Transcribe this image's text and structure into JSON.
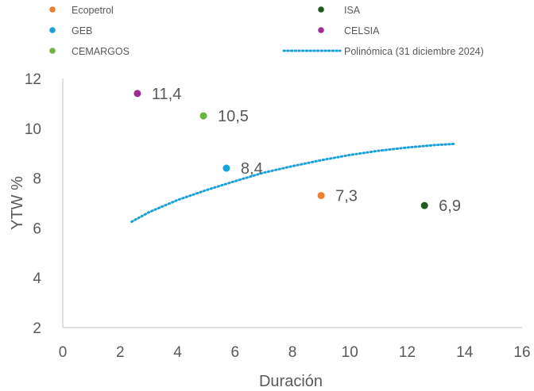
{
  "chart_data": {
    "type": "scatter",
    "xlabel": "Duración",
    "ylabel": "YTW %",
    "xlim": [
      0,
      16
    ],
    "ylim": [
      2,
      12
    ],
    "xticks": [
      0,
      2,
      4,
      6,
      8,
      10,
      12,
      14,
      16
    ],
    "yticks": [
      2,
      4,
      6,
      8,
      10,
      12
    ],
    "grid": false,
    "legend_position": "top",
    "series": [
      {
        "name": "Ecopetrol",
        "color": "#ED7D31",
        "points": [
          {
            "x": 9.0,
            "y": 7.3,
            "label": "7,3"
          }
        ]
      },
      {
        "name": "ISA",
        "color": "#1E5C1E",
        "points": [
          {
            "x": 12.6,
            "y": 6.9,
            "label": "6,9"
          }
        ]
      },
      {
        "name": "GEB",
        "color": "#1BA1D9",
        "points": [
          {
            "x": 5.7,
            "y": 8.4,
            "label": "8,4"
          }
        ]
      },
      {
        "name": "CELSIA",
        "color": "#A02C93",
        "points": [
          {
            "x": 2.6,
            "y": 11.4,
            "label": "11,4"
          }
        ]
      },
      {
        "name": "CEMARGOS",
        "color": "#6DB33F",
        "points": [
          {
            "x": 4.9,
            "y": 10.5,
            "label": "10,5"
          }
        ]
      }
    ],
    "trendline": {
      "name": "Polinómica (31 diciembre 2024)",
      "color": "#1BA1D9",
      "style": "dotted",
      "x": [
        2.4,
        3.0,
        4.0,
        5.0,
        6.0,
        7.0,
        8.0,
        9.0,
        10.0,
        11.0,
        12.0,
        13.0,
        13.7
      ],
      "y": [
        6.25,
        6.63,
        7.12,
        7.52,
        7.88,
        8.22,
        8.48,
        8.72,
        8.93,
        9.1,
        9.23,
        9.33,
        9.38
      ]
    },
    "legend": [
      {
        "name": "Ecopetrol",
        "marker": "dot"
      },
      {
        "name": "ISA",
        "marker": "dot"
      },
      {
        "name": "GEB",
        "marker": "dot"
      },
      {
        "name": "CELSIA",
        "marker": "dot"
      },
      {
        "name": "CEMARGOS",
        "marker": "dot"
      },
      {
        "name": "Polinómica (31 diciembre 2024)",
        "marker": "dotted-line"
      }
    ],
    "axis_color": "#BFBFBF",
    "text_color": "#595959"
  }
}
